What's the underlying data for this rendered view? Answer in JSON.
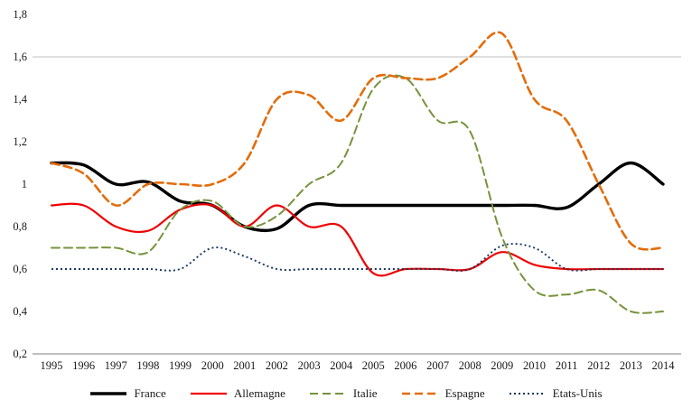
{
  "chart": {
    "background": "#ffffff",
    "axis_color": "#808080",
    "gridline_color": "#c0c0c0",
    "tick_color": "#1a1a1a"
  },
  "chart_data": {
    "type": "line",
    "title": "",
    "xlabel": "",
    "ylabel": "",
    "x": [
      1995,
      1996,
      1997,
      1998,
      1999,
      2000,
      2001,
      2002,
      2003,
      2004,
      2005,
      2006,
      2007,
      2008,
      2009,
      2010,
      2011,
      2012,
      2013,
      2014
    ],
    "x_tick_labels": [
      "1995",
      "1996",
      "1997",
      "1998",
      "1999",
      "2000",
      "2001",
      "2002",
      "2003",
      "2004",
      "2005",
      "2006",
      "2007",
      "2008",
      "2009",
      "2010",
      "2011",
      "2012",
      "2013",
      "2014"
    ],
    "ylim": [
      0.2,
      1.8
    ],
    "y_ticks": [
      0.2,
      0.4,
      0.6,
      0.8,
      1.0,
      1.2,
      1.4,
      1.6,
      1.8
    ],
    "y_tick_labels": [
      "0,2",
      "0,4",
      "0,6",
      "0,8",
      "1",
      "1,2",
      "1,4",
      "1,6",
      "1,8"
    ],
    "gridlines_y": [
      1.6
    ],
    "grid": "partial",
    "legend_position": "bottom",
    "series": [
      {
        "name": "France",
        "color": "#000000",
        "style": "solid",
        "width": 3.4,
        "values": [
          1.1,
          1.09,
          1.0,
          1.01,
          0.92,
          0.9,
          0.8,
          0.79,
          0.9,
          0.9,
          0.9,
          0.9,
          0.9,
          0.9,
          0.9,
          0.9,
          0.89,
          1.0,
          1.1,
          1.0
        ]
      },
      {
        "name": "Allemagne",
        "color": "#ee0000",
        "style": "solid",
        "width": 2.2,
        "values": [
          0.9,
          0.9,
          0.8,
          0.78,
          0.88,
          0.9,
          0.8,
          0.9,
          0.8,
          0.8,
          0.58,
          0.6,
          0.6,
          0.6,
          0.68,
          0.62,
          0.6,
          0.6,
          0.6,
          0.6
        ]
      },
      {
        "name": "Italie",
        "color": "#77933c",
        "style": "dashed",
        "width": 2,
        "values": [
          0.7,
          0.7,
          0.7,
          0.68,
          0.88,
          0.92,
          0.8,
          0.85,
          1.0,
          1.1,
          1.45,
          1.5,
          1.3,
          1.25,
          0.75,
          0.5,
          0.48,
          0.5,
          0.4,
          0.4
        ]
      },
      {
        "name": "Espagne",
        "color": "#e36c0a",
        "style": "dashed",
        "width": 2.6,
        "values": [
          1.1,
          1.05,
          0.9,
          1.0,
          1.0,
          1.0,
          1.1,
          1.4,
          1.42,
          1.3,
          1.5,
          1.5,
          1.5,
          1.6,
          1.71,
          1.4,
          1.3,
          1.0,
          0.72,
          0.7
        ]
      },
      {
        "name": "Etats-Unis",
        "color": "#17375e",
        "style": "dotted",
        "width": 1.9,
        "values": [
          0.6,
          0.6,
          0.6,
          0.6,
          0.6,
          0.7,
          0.66,
          0.6,
          0.6,
          0.6,
          0.6,
          0.6,
          0.6,
          0.6,
          0.71,
          0.7,
          0.6,
          0.6,
          0.6,
          0.6
        ]
      }
    ]
  }
}
